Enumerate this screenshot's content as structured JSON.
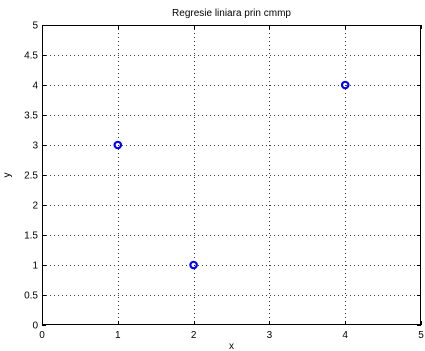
{
  "chart_data": {
    "type": "scatter",
    "title": "Regresie liniara prin cmmp",
    "xlabel": "x",
    "ylabel": "y",
    "xlim": [
      0,
      5
    ],
    "ylim": [
      0,
      5
    ],
    "x_ticks": [
      "0",
      "1",
      "2",
      "3",
      "4",
      "5"
    ],
    "y_ticks": [
      "0",
      "0.5",
      "1",
      "1.5",
      "2",
      "2.5",
      "3",
      "3.5",
      "4",
      "4.5",
      "5"
    ],
    "grid": true,
    "grid_style": "dotted",
    "marker": "circle",
    "marker_color": "#0000ff",
    "series": [
      {
        "x": [
          1,
          2,
          4
        ],
        "y": [
          3,
          1,
          4
        ]
      }
    ]
  }
}
